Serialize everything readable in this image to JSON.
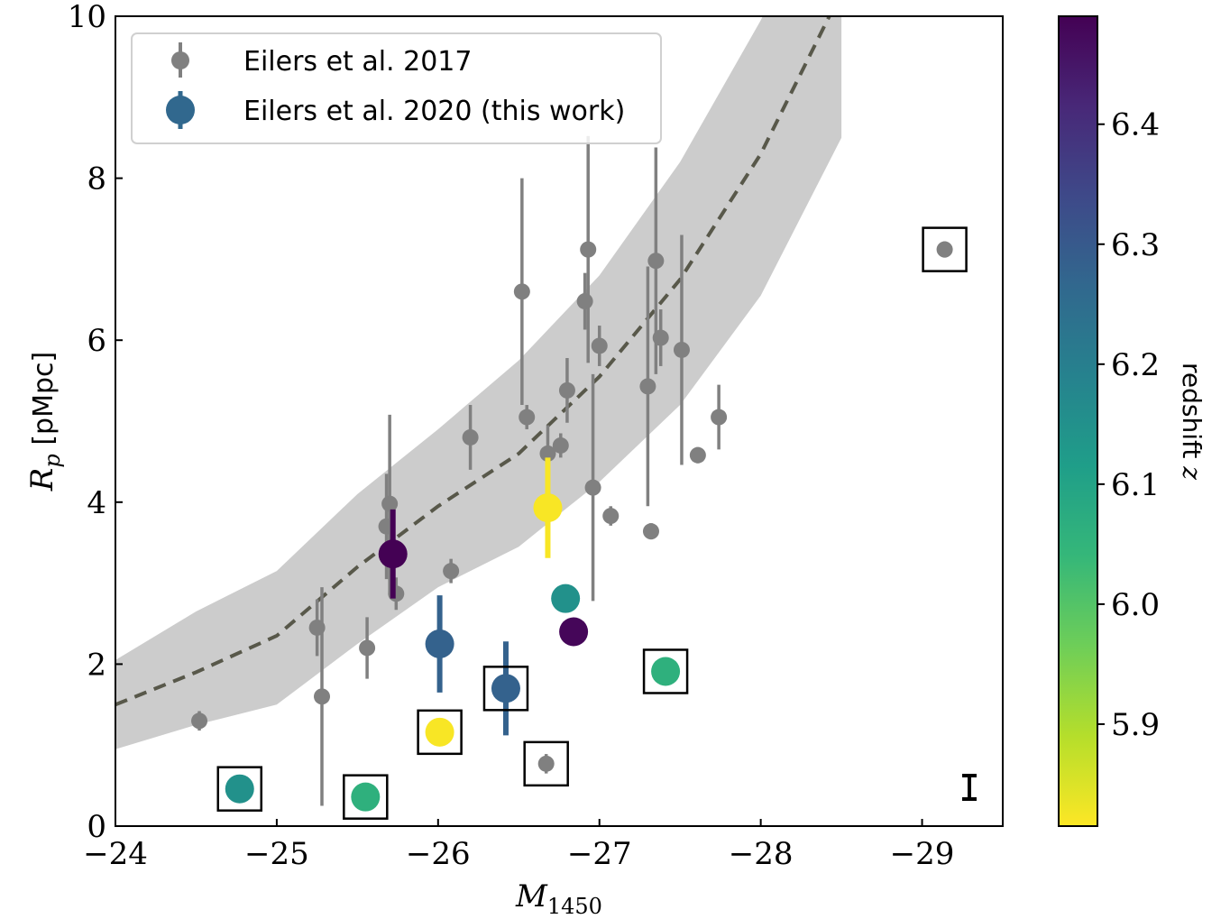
{
  "chart_data": {
    "type": "scatter",
    "xlabel": "M_1450",
    "ylabel": "R_p [pMpc]",
    "xlim": [
      -24,
      -29.5
    ],
    "ylim": [
      0,
      10
    ],
    "x_ticks": [
      -24,
      -25,
      -26,
      -27,
      -28,
      -29
    ],
    "x_tick_labels": [
      "−24",
      "−25",
      "−26",
      "−27",
      "−28",
      "−29"
    ],
    "y_ticks": [
      0,
      2,
      4,
      6,
      8,
      10
    ],
    "y_tick_labels": [
      "0",
      "2",
      "4",
      "6",
      "8",
      "10"
    ],
    "legend_placement": "upper-left",
    "grid": false,
    "colorbar": {
      "label": "redshift z",
      "range": [
        5.815,
        6.49
      ],
      "ticks": [
        5.9,
        6.0,
        6.1,
        6.2,
        6.3,
        6.4
      ],
      "tick_labels": [
        "5.9",
        "6.0",
        "6.1",
        "6.2",
        "6.3",
        "6.4"
      ],
      "colormap": "viridis_r",
      "colors": [
        "#fde725",
        "#b5de2b",
        "#6ece58",
        "#35b779",
        "#1f9e89",
        "#26828e",
        "#31688e",
        "#3e4989",
        "#482878",
        "#440154"
      ]
    },
    "model": {
      "x": [
        -24,
        -24.5,
        -25,
        -25.5,
        -26,
        -26.5,
        -27,
        -27.5,
        -28,
        -28.5
      ],
      "y": [
        1.5,
        1.9,
        2.35,
        3.2,
        3.95,
        4.6,
        5.55,
        6.75,
        8.3,
        10.3
      ],
      "band_lower": [
        0.95,
        1.25,
        1.5,
        2.25,
        2.95,
        3.45,
        4.25,
        5.2,
        6.55,
        8.5
      ],
      "band_upper": [
        2.05,
        2.65,
        3.15,
        4.1,
        4.9,
        5.75,
        6.8,
        8.2,
        9.95,
        12.0
      ],
      "line_color": "#58584a",
      "band_color": "#cccccc"
    },
    "series": [
      {
        "name": "Eilers et al. 2017",
        "color": "#808080",
        "points": [
          {
            "x": -24.52,
            "y": 1.3,
            "err": 0.12
          },
          {
            "x": -25.25,
            "y": 2.45,
            "err": 0.35
          },
          {
            "x": -25.28,
            "y": 1.6,
            "err": 1.35
          },
          {
            "x": -25.56,
            "y": 2.2,
            "err": 0.38
          },
          {
            "x": -25.68,
            "y": 3.7,
            "err": 0.65
          },
          {
            "x": -25.7,
            "y": 3.98,
            "err": 1.1
          },
          {
            "x": -25.74,
            "y": 2.87,
            "err": 0.2
          },
          {
            "x": -26.08,
            "y": 3.15,
            "err": 0.15
          },
          {
            "x": -26.2,
            "y": 4.8,
            "err": 0.4
          },
          {
            "x": -26.52,
            "y": 6.6,
            "err": 1.4
          },
          {
            "x": -26.55,
            "y": 5.05,
            "err": 0.15
          },
          {
            "x": -26.68,
            "y": 4.6,
            "err": 0.35
          },
          {
            "x": -26.76,
            "y": 4.7,
            "err": 0.15
          },
          {
            "x": -26.8,
            "y": 5.38,
            "err": 0.4
          },
          {
            "x": -26.91,
            "y": 6.48,
            "err": 0.35
          },
          {
            "x": -26.93,
            "y": 7.12,
            "err": 1.4
          },
          {
            "x": -26.96,
            "y": 4.18,
            "err": 1.4
          },
          {
            "x": -27.0,
            "y": 5.93,
            "err": 0.25
          },
          {
            "x": -27.07,
            "y": 3.83,
            "err": 0.12
          },
          {
            "x": -27.3,
            "y": 5.43,
            "err": 1.48
          },
          {
            "x": -27.32,
            "y": 3.64,
            "err": 0.1
          },
          {
            "x": -27.35,
            "y": 6.98,
            "err": 1.4
          },
          {
            "x": -27.38,
            "y": 6.03,
            "err": 0.35
          },
          {
            "x": -27.51,
            "y": 5.88,
            "err": 1.42
          },
          {
            "x": -27.61,
            "y": 4.58,
            "err": 0.1
          },
          {
            "x": -27.74,
            "y": 5.05,
            "err": 0.4
          },
          {
            "x": -29.14,
            "y": 7.12,
            "err": 0.1,
            "boxed": true
          },
          {
            "x": -26.67,
            "y": 0.77,
            "err": 0.12,
            "boxed": true
          }
        ]
      },
      {
        "name": "Eilers et al. 2020 (this work)",
        "points": [
          {
            "x": -25.72,
            "y": 3.36,
            "err": 0.55,
            "z": 6.49
          },
          {
            "x": -26.01,
            "y": 2.25,
            "err": 0.6,
            "z": 6.28
          },
          {
            "x": -26.42,
            "y": 1.7,
            "err": 0.58,
            "z": 6.28,
            "boxed": true
          },
          {
            "x": -26.68,
            "y": 3.93,
            "err": 0.62,
            "z": 5.82
          },
          {
            "x": -26.79,
            "y": 2.81,
            "err": 0,
            "z": 6.15
          },
          {
            "x": -26.84,
            "y": 2.4,
            "err": 0,
            "z": 6.48
          },
          {
            "x": -27.41,
            "y": 1.91,
            "err": 0,
            "z": 6.06,
            "boxed": true
          },
          {
            "x": -26.01,
            "y": 1.16,
            "err": 0,
            "z": 5.82,
            "boxed": true
          },
          {
            "x": -24.77,
            "y": 0.46,
            "err": 0,
            "z": 6.15,
            "boxed": true
          },
          {
            "x": -25.55,
            "y": 0.36,
            "err": 0,
            "z": 6.06,
            "boxed": true
          }
        ]
      }
    ]
  }
}
